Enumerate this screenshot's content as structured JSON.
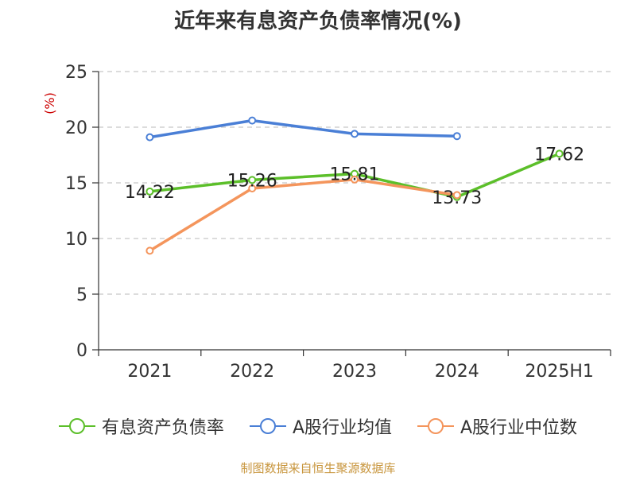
{
  "chart_data": {
    "type": "line",
    "title": "近年来有息资产负债率情况(%)",
    "ylabel": "(%)",
    "xlabel": "",
    "categories": [
      "2021",
      "2022",
      "2023",
      "2024",
      "2025H1"
    ],
    "ylim": [
      0,
      25
    ],
    "yticks": [
      0,
      5,
      10,
      15,
      20,
      25
    ],
    "grid": true,
    "legend_position": "bottom",
    "series": [
      {
        "name": "有息资产负债率",
        "color": "#5cbf2a",
        "values": [
          14.22,
          15.26,
          15.81,
          13.73,
          17.62
        ],
        "labels": [
          "14.22",
          "15.26",
          "15.81",
          "13.73",
          "17.62"
        ]
      },
      {
        "name": "A股行业均值",
        "color": "#4a7fd6",
        "values": [
          19.1,
          20.6,
          19.4,
          19.2,
          null
        ]
      },
      {
        "name": "A股行业中位数",
        "color": "#f4955c",
        "values": [
          8.9,
          14.5,
          15.3,
          13.9,
          null
        ]
      }
    ]
  },
  "source_note": "制图数据来自恒生聚源数据库"
}
